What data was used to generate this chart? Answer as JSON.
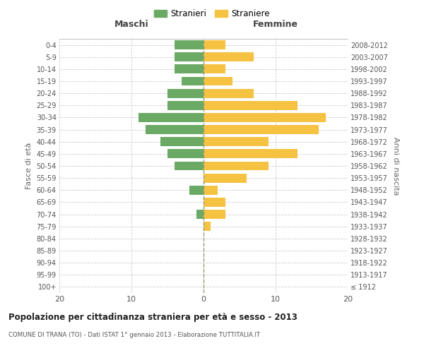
{
  "age_groups": [
    "100+",
    "95-99",
    "90-94",
    "85-89",
    "80-84",
    "75-79",
    "70-74",
    "65-69",
    "60-64",
    "55-59",
    "50-54",
    "45-49",
    "40-44",
    "35-39",
    "30-34",
    "25-29",
    "20-24",
    "15-19",
    "10-14",
    "5-9",
    "0-4"
  ],
  "birth_years": [
    "≤ 1912",
    "1913-1917",
    "1918-1922",
    "1923-1927",
    "1928-1932",
    "1933-1937",
    "1938-1942",
    "1943-1947",
    "1948-1952",
    "1953-1957",
    "1958-1962",
    "1963-1967",
    "1968-1972",
    "1973-1977",
    "1978-1982",
    "1983-1987",
    "1988-1992",
    "1993-1997",
    "1998-2002",
    "2003-2007",
    "2008-2012"
  ],
  "maschi": [
    0,
    0,
    0,
    0,
    0,
    0,
    1,
    0,
    2,
    0,
    4,
    5,
    6,
    8,
    9,
    5,
    5,
    3,
    4,
    4,
    4
  ],
  "femmine": [
    0,
    0,
    0,
    0,
    0,
    1,
    3,
    3,
    2,
    6,
    9,
    13,
    9,
    16,
    17,
    13,
    7,
    4,
    3,
    7,
    3
  ],
  "maschi_color": "#6aaa64",
  "femmine_color": "#f5c242",
  "grid_color": "#cccccc",
  "center_line_color": "#999977",
  "title": "Popolazione per cittadinanza straniera per età e sesso - 2013",
  "subtitle": "COMUNE DI TRANA (TO) - Dati ISTAT 1° gennaio 2013 - Elaborazione TUTTITALIA.IT",
  "legend_maschi": "Stranieri",
  "legend_femmine": "Straniere",
  "label_left": "Maschi",
  "label_right": "Femmine",
  "ylabel_left": "Fasce di età",
  "ylabel_right": "Anni di nascita",
  "xlim": 20,
  "bar_height": 0.75
}
